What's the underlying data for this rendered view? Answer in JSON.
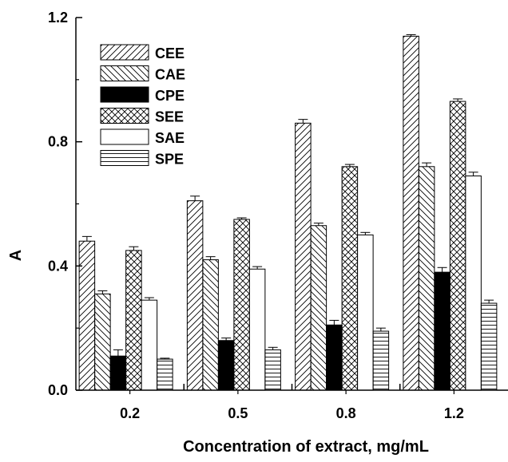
{
  "chart_data": {
    "type": "bar",
    "title": "",
    "xlabel": "Concentration of extract, mg/mL",
    "ylabel": "A",
    "categories": [
      "0.2",
      "0.5",
      "0.8",
      "1.2"
    ],
    "ylim": [
      0,
      1.2
    ],
    "yticks": [
      "0.0",
      "0.4",
      "0.8",
      "1.2"
    ],
    "legend_position": "top-left",
    "error_bars": true,
    "series": [
      {
        "name": "CEE",
        "pattern": "diagonal-up",
        "values": [
          0.48,
          0.61,
          0.86,
          1.14
        ],
        "errors": [
          0.015,
          0.015,
          0.012,
          0.005
        ]
      },
      {
        "name": "CAE",
        "pattern": "diagonal-down",
        "values": [
          0.31,
          0.42,
          0.53,
          0.72
        ],
        "errors": [
          0.01,
          0.01,
          0.008,
          0.012
        ]
      },
      {
        "name": "CPE",
        "pattern": "solid",
        "values": [
          0.11,
          0.16,
          0.21,
          0.38
        ],
        "errors": [
          0.02,
          0.008,
          0.015,
          0.015
        ]
      },
      {
        "name": "SEE",
        "pattern": "cross-hatch",
        "values": [
          0.45,
          0.55,
          0.72,
          0.93
        ],
        "errors": [
          0.012,
          0.005,
          0.007,
          0.008
        ]
      },
      {
        "name": "SAE",
        "pattern": "empty",
        "values": [
          0.29,
          0.39,
          0.5,
          0.69
        ],
        "errors": [
          0.008,
          0.008,
          0.008,
          0.012
        ]
      },
      {
        "name": "SPE",
        "pattern": "horizontal",
        "values": [
          0.1,
          0.13,
          0.19,
          0.28
        ],
        "errors": [
          0.003,
          0.008,
          0.01,
          0.01
        ]
      }
    ]
  }
}
